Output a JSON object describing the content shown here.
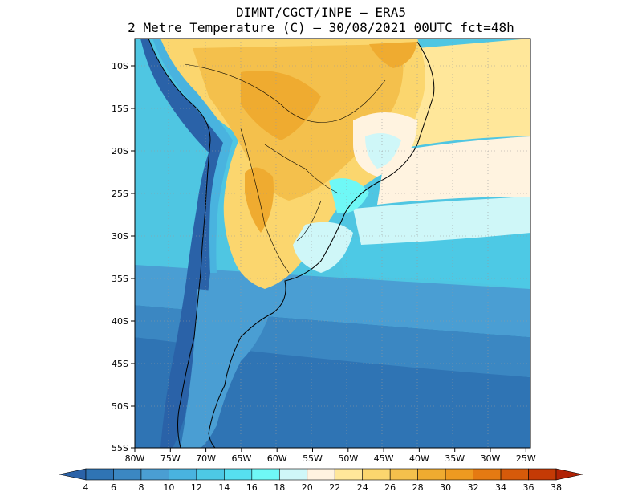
{
  "title": {
    "line1": "DIMNT/CGCT/INPE –  ERA5",
    "line2": "2 Metre Temperature (C) –  30/08/2021 00UTC fct=48h"
  },
  "map": {
    "lon_labels": [
      "80W",
      "75W",
      "70W",
      "65W",
      "60W",
      "55W",
      "50W",
      "45W",
      "40W",
      "35W",
      "30W",
      "25W"
    ],
    "lat_labels": [
      "10S",
      "15S",
      "20S",
      "25S",
      "30S",
      "35S",
      "40S",
      "45S",
      "50S",
      "55S"
    ]
  },
  "colorbar": {
    "labels": [
      "4",
      "6",
      "8",
      "10",
      "12",
      "14",
      "16",
      "18",
      "20",
      "22",
      "24",
      "26",
      "28",
      "30",
      "32",
      "34",
      "36",
      "38"
    ],
    "colors": [
      "#2a62a8",
      "#2f74b4",
      "#3b87c2",
      "#4a9ed3",
      "#49b3df",
      "#4dc9e5",
      "#56dff0",
      "#6ff8f6",
      "#cff7f8",
      "#fff3e0",
      "#ffe79a",
      "#fbd66e",
      "#f4c04c",
      "#efab30",
      "#ee9a20",
      "#e57a12",
      "#d65a0a",
      "#c43a05",
      "#b02205"
    ],
    "icon": "colorbar-triangles"
  }
}
